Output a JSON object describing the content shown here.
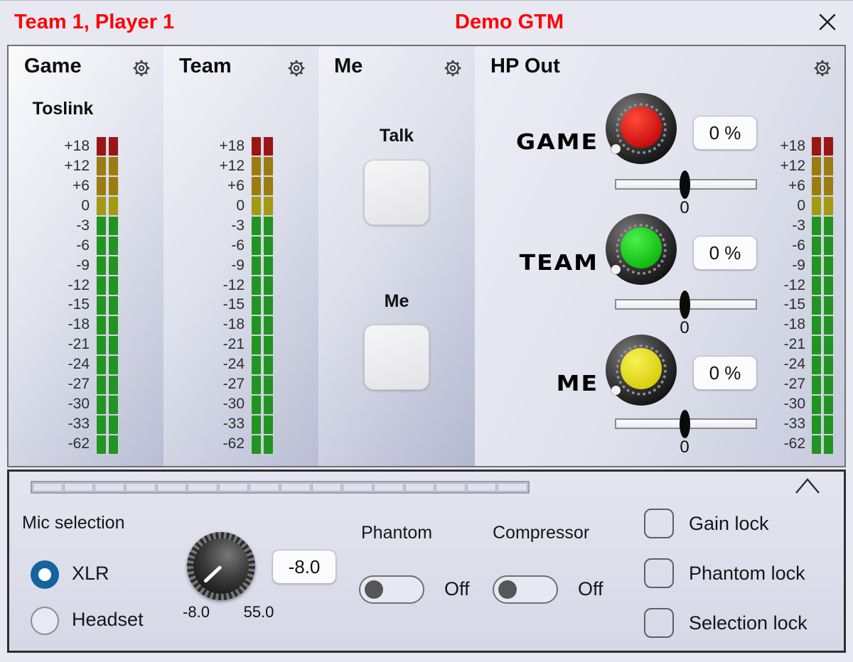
{
  "window": {
    "player_title": "Team 1, Player 1",
    "app_title": "Demo GTM"
  },
  "colors": {
    "title_red": "#ff0000",
    "meter_red": "#9a1616",
    "meter_olive": "#9b7c10",
    "meter_yellow": "#a29a12",
    "meter_green": "#219421",
    "radio_selected_blue": "#15639f"
  },
  "meter": {
    "scale": [
      "+18",
      "+12",
      "+6",
      "0",
      "-3",
      "-6",
      "-9",
      "-12",
      "-15",
      "-18",
      "-21",
      "-24",
      "-27",
      "-30",
      "-33",
      "-62"
    ],
    "segment_colors": [
      "#9a1616",
      "#9b7c10",
      "#9b7c10",
      "#a29a12",
      "#219421",
      "#219421",
      "#219421",
      "#219421",
      "#219421",
      "#219421",
      "#219421",
      "#219421",
      "#219421",
      "#219421",
      "#219421",
      "#219421"
    ]
  },
  "columns": {
    "game": {
      "label": "Game",
      "source": "Toslink"
    },
    "team": {
      "label": "Team"
    },
    "me": {
      "label": "Me",
      "talk_button_label": "Talk",
      "me_button_label": "Me"
    },
    "hp": {
      "label": "HP Out",
      "channels": [
        {
          "name": "GAME",
          "percent": "0 %",
          "slider_value": "0",
          "cap_light": "#ff4a3a",
          "cap_dark": "#c40808"
        },
        {
          "name": "TEAM",
          "percent": "0 %",
          "slider_value": "0",
          "cap_light": "#4bf04b",
          "cap_dark": "#0bb60b"
        },
        {
          "name": "ME",
          "percent": "0 %",
          "slider_value": "0",
          "cap_light": "#f6f252",
          "cap_dark": "#d6cc08"
        }
      ]
    }
  },
  "bottom": {
    "segment_bar_count": 16,
    "mic_selection_label": "Mic selection",
    "radios": [
      {
        "label": "XLR",
        "selected": true
      },
      {
        "label": "Headset",
        "selected": false
      }
    ],
    "gain_knob": {
      "value": "-8.0",
      "min": "-8.0",
      "max": "55.0"
    },
    "phantom": {
      "label": "Phantom",
      "state": "Off"
    },
    "compressor": {
      "label": "Compressor",
      "state": "Off"
    },
    "locks": [
      {
        "label": "Gain lock",
        "checked": false
      },
      {
        "label": "Phantom lock",
        "checked": false
      },
      {
        "label": "Selection lock",
        "checked": false
      }
    ]
  }
}
